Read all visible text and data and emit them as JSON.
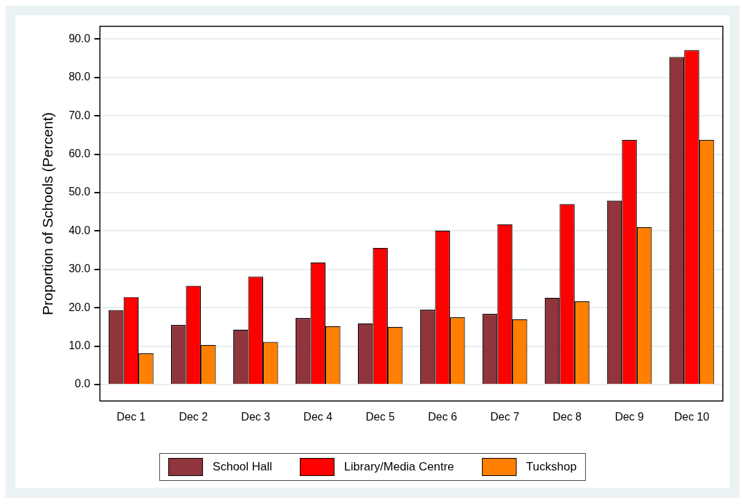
{
  "chart_data": {
    "type": "bar",
    "ylabel": "Proportion of Schools (Percent)",
    "categories": [
      "Dec 1",
      "Dec 2",
      "Dec 3",
      "Dec 4",
      "Dec 5",
      "Dec 6",
      "Dec 7",
      "Dec 8",
      "Dec 9",
      "Dec 10"
    ],
    "series": [
      {
        "name": "School Hall",
        "color": "#90353b",
        "values": [
          19.4,
          15.5,
          14.3,
          17.3,
          15.9,
          19.5,
          18.4,
          22.6,
          47.9,
          85.3
        ]
      },
      {
        "name": "Library/Media Centre",
        "color": "#ff0000",
        "values": [
          22.8,
          25.7,
          28.1,
          31.8,
          35.6,
          40.1,
          41.7,
          47.0,
          63.7,
          87.1
        ]
      },
      {
        "name": "Tuckshop",
        "color": "#ff7f00",
        "values": [
          8.1,
          10.3,
          11.1,
          15.2,
          15.0,
          17.5,
          17.0,
          21.7,
          41.0,
          63.7
        ]
      }
    ],
    "ylim": [
      -4.3,
      93.3
    ],
    "yticks": [
      {
        "value": 0,
        "label": "0.0"
      },
      {
        "value": 10,
        "label": "10.0"
      },
      {
        "value": 20,
        "label": "20.0"
      },
      {
        "value": 30,
        "label": "30.0"
      },
      {
        "value": 40,
        "label": "40.0"
      },
      {
        "value": 50,
        "label": "50.0"
      },
      {
        "value": 60,
        "label": "60.0"
      },
      {
        "value": 70,
        "label": "70.0"
      },
      {
        "value": 80,
        "label": "80.0"
      },
      {
        "value": 90,
        "label": "90.0"
      }
    ],
    "grid": "y",
    "legend": "bottom"
  }
}
